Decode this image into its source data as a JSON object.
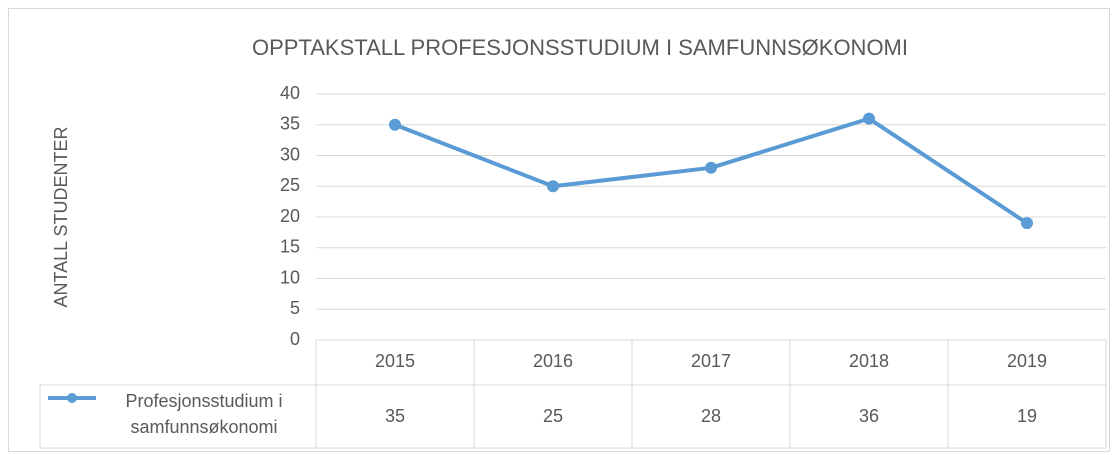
{
  "chart_data": {
    "type": "line",
    "title": "OPPTAKSTALL PROFESJONSSTUDIUM I SAMFUNNSØKONOMI",
    "y_label": "ANTALL STUDENTER",
    "categories": [
      "2015",
      "2016",
      "2017",
      "2018",
      "2019"
    ],
    "series": [
      {
        "name": "Profesjonsstudium i samfunnsøkonomi",
        "color": "#5b9bd5",
        "values": [
          35,
          25,
          28,
          36,
          19
        ]
      }
    ],
    "ylim": [
      0,
      40
    ],
    "yticks": [
      0,
      5,
      10,
      15,
      20,
      25,
      30,
      35,
      40
    ],
    "grid": true,
    "data_table": true
  }
}
